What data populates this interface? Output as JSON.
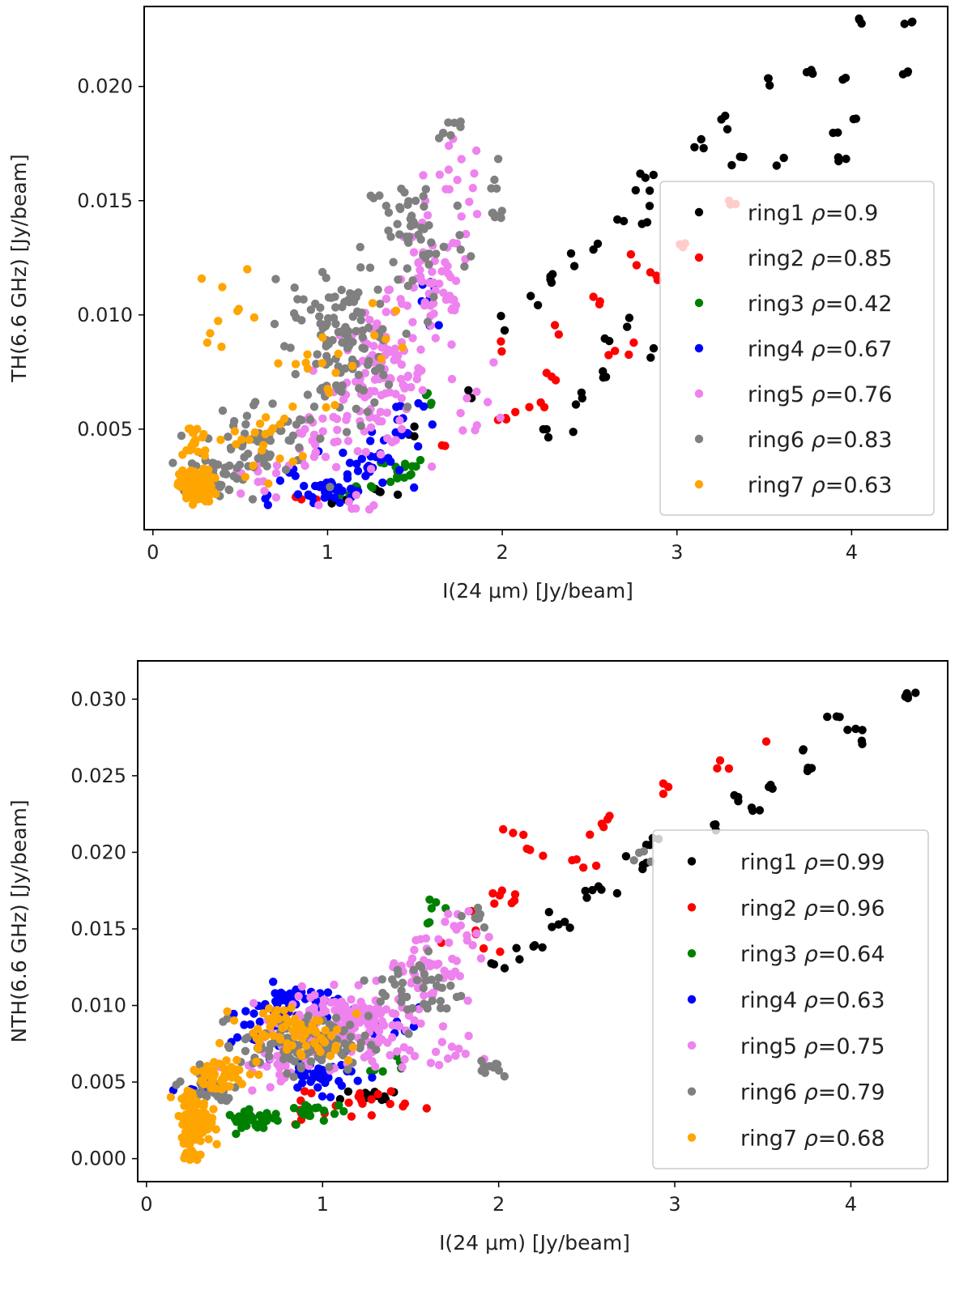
{
  "chart_data": [
    {
      "type": "scatter",
      "xlabel": "I(24 μm) [Jy/beam]",
      "ylabel": "TH(6.6 GHz) [Jy/beam]",
      "xlim": [
        -0.05,
        4.55
      ],
      "ylim": [
        0.0006,
        0.0235
      ],
      "xticks": [
        0,
        1,
        2,
        3,
        4
      ],
      "xtick_labels": [
        "0",
        "1",
        "2",
        "3",
        "4"
      ],
      "yticks": [
        0.005,
        0.01,
        0.015,
        0.02
      ],
      "ytick_labels": [
        "0.005",
        "0.010",
        "0.015",
        "0.020"
      ],
      "grid": false,
      "legend_position": "lower-right",
      "series": [
        {
          "name": "ring1",
          "rho": "0.9",
          "color": "#000000",
          "clusters": [
            [
              4.05,
              0.0228,
              0.03,
              0.0002,
              3
            ],
            [
              4.34,
              0.0228,
              0.03,
              0.0002,
              3
            ],
            [
              3.55,
              0.0203,
              0.04,
              0.0003,
              3
            ],
            [
              3.75,
              0.0206,
              0.05,
              0.0003,
              3
            ],
            [
              3.95,
              0.0205,
              0.03,
              0.0003,
              2
            ],
            [
              4.3,
              0.0205,
              0.03,
              0.0002,
              3
            ],
            [
              3.3,
              0.0186,
              0.06,
              0.0003,
              3
            ],
            [
              3.9,
              0.0183,
              0.03,
              0.0003,
              2
            ],
            [
              4.02,
              0.0186,
              0.02,
              0.0002,
              2
            ],
            [
              3.15,
              0.0172,
              0.05,
              0.0004,
              3
            ],
            [
              3.35,
              0.0168,
              0.05,
              0.0003,
              3
            ],
            [
              3.6,
              0.0166,
              0.03,
              0.0003,
              2
            ],
            [
              3.95,
              0.0168,
              0.05,
              0.0002,
              3
            ],
            [
              2.85,
              0.0162,
              0.05,
              0.0004,
              3
            ],
            [
              2.8,
              0.015,
              0.05,
              0.0005,
              3
            ],
            [
              2.7,
              0.0142,
              0.04,
              0.0003,
              2
            ],
            [
              2.8,
              0.0138,
              0.03,
              0.0003,
              2
            ],
            [
              2.55,
              0.013,
              0.03,
              0.0003,
              2
            ],
            [
              2.4,
              0.0125,
              0.03,
              0.0003,
              2
            ],
            [
              2.3,
              0.0117,
              0.05,
              0.0004,
              4
            ],
            [
              2.2,
              0.0106,
              0.03,
              0.0003,
              2
            ],
            [
              2.7,
              0.0096,
              0.03,
              0.0003,
              2
            ],
            [
              2.6,
              0.0088,
              0.03,
              0.0003,
              2
            ],
            [
              2.85,
              0.0084,
              0.04,
              0.0003,
              2
            ],
            [
              2.55,
              0.0073,
              0.05,
              0.0003,
              3
            ],
            [
              2.45,
              0.0063,
              0.05,
              0.0003,
              3
            ],
            [
              2.3,
              0.0048,
              0.1,
              0.0004,
              4
            ],
            [
              2.0,
              0.0095,
              0.02,
              0.0003,
              2
            ],
            [
              1.8,
              0.0066,
              0.05,
              0.0003,
              2
            ],
            [
              1.5,
              0.0048,
              0.05,
              0.0004,
              3
            ],
            [
              1.3,
              0.0022,
              0.08,
              0.0002,
              4
            ],
            [
              1.05,
              0.0019,
              0.1,
              0.0002,
              5
            ]
          ]
        },
        {
          "name": "ring2",
          "rho": "0.85",
          "color": "#ff0000",
          "clusters": [
            [
              3.3,
              0.0147,
              0.04,
              0.0003,
              3
            ],
            [
              3.05,
              0.0128,
              0.06,
              0.0006,
              3
            ],
            [
              2.75,
              0.0123,
              0.03,
              0.0003,
              2
            ],
            [
              2.9,
              0.0118,
              0.05,
              0.0004,
              3
            ],
            [
              2.55,
              0.0104,
              0.04,
              0.0003,
              3
            ],
            [
              2.3,
              0.0093,
              0.03,
              0.0003,
              2
            ],
            [
              2.7,
              0.0086,
              0.08,
              0.0004,
              4
            ],
            [
              2.0,
              0.0087,
              0.02,
              0.0004,
              2
            ],
            [
              2.3,
              0.0072,
              0.05,
              0.0004,
              3
            ],
            [
              2.15,
              0.006,
              0.08,
              0.0003,
              4
            ],
            [
              2.0,
              0.0055,
              0.05,
              0.0004,
              3
            ],
            [
              1.65,
              0.0043,
              0.03,
              0.0002,
              2
            ],
            [
              0.9,
              0.0019,
              0.06,
              0.0002,
              3
            ]
          ]
        },
        {
          "name": "ring3",
          "rho": "0.42",
          "color": "#008000",
          "clusters": [
            [
              1.35,
              0.0032,
              0.2,
              0.0005,
              16
            ],
            [
              1.15,
              0.0024,
              0.15,
              0.0004,
              10
            ],
            [
              1.6,
              0.0062,
              0.06,
              0.0006,
              4
            ]
          ]
        },
        {
          "name": "ring4",
          "rho": "0.67",
          "color": "#0000ff",
          "clusters": [
            [
              1.0,
              0.0024,
              0.13,
              0.0005,
              35
            ],
            [
              1.25,
              0.0034,
              0.15,
              0.0008,
              25
            ],
            [
              1.4,
              0.0054,
              0.12,
              0.0012,
              12
            ],
            [
              1.6,
              0.0105,
              0.12,
              0.0018,
              7
            ],
            [
              0.65,
              0.0018,
              0.05,
              0.0003,
              3
            ],
            [
              0.85,
              0.0034,
              0.08,
              0.0006,
              5
            ]
          ]
        },
        {
          "name": "ring5",
          "rho": "0.76",
          "color": "#ee82ee",
          "clusters": [
            [
              1.3,
              0.0072,
              0.22,
              0.0025,
              110
            ],
            [
              1.6,
              0.0112,
              0.2,
              0.0025,
              60
            ],
            [
              1.75,
              0.0158,
              0.12,
              0.0015,
              15
            ],
            [
              0.95,
              0.0043,
              0.18,
              0.0015,
              30
            ],
            [
              0.6,
              0.003,
              0.15,
              0.0008,
              12
            ],
            [
              1.85,
              0.0062,
              0.15,
              0.0015,
              10
            ],
            [
              1.15,
              0.0017,
              0.15,
              0.0002,
              6
            ]
          ]
        },
        {
          "name": "ring6",
          "rho": "0.83",
          "color": "#808080",
          "clusters": [
            [
              1.1,
              0.0085,
              0.25,
              0.0025,
              110
            ],
            [
              1.5,
              0.0135,
              0.25,
              0.0025,
              55
            ],
            [
              0.6,
              0.0045,
              0.25,
              0.0015,
              60
            ],
            [
              0.35,
              0.003,
              0.15,
              0.0008,
              30
            ],
            [
              1.7,
              0.018,
              0.1,
              0.0007,
              8
            ],
            [
              1.95,
              0.015,
              0.07,
              0.0013,
              10
            ],
            [
              0.8,
              0.01,
              0.2,
              0.0015,
              14
            ]
          ]
        },
        {
          "name": "ring7",
          "rho": "0.63",
          "color": "#ffa500",
          "clusters": [
            [
              0.25,
              0.0025,
              0.08,
              0.0006,
              130
            ],
            [
              0.25,
              0.0045,
              0.06,
              0.0008,
              20
            ],
            [
              0.6,
              0.0045,
              0.2,
              0.0012,
              22
            ],
            [
              0.45,
              0.0105,
              0.15,
              0.0015,
              10
            ],
            [
              0.95,
              0.0075,
              0.2,
              0.0015,
              14
            ],
            [
              1.3,
              0.0092,
              0.1,
              0.001,
              6
            ]
          ]
        }
      ]
    },
    {
      "type": "scatter",
      "xlabel": "I(24 μm) [Jy/beam]",
      "ylabel": "NTH(6.6 GHz) [Jy/beam]",
      "xlim": [
        -0.05,
        4.55
      ],
      "ylim": [
        -0.0015,
        0.0325
      ],
      "xticks": [
        0,
        1,
        2,
        3,
        4
      ],
      "xtick_labels": [
        "0",
        "1",
        "2",
        "3",
        "4"
      ],
      "yticks": [
        0.0,
        0.005,
        0.01,
        0.015,
        0.02,
        0.025,
        0.03
      ],
      "ytick_labels": [
        "0.000",
        "0.005",
        "0.010",
        "0.015",
        "0.020",
        "0.025",
        "0.030"
      ],
      "grid": false,
      "legend_position": "lower-right",
      "series": [
        {
          "name": "ring1",
          "rho": "0.99",
          "color": "#000000",
          "clusters": [
            [
              4.32,
              0.0302,
              0.03,
              0.0003,
              6
            ],
            [
              3.92,
              0.0288,
              0.03,
              0.0002,
              3
            ],
            [
              4.02,
              0.028,
              0.05,
              0.0003,
              3
            ],
            [
              4.06,
              0.0271,
              0.03,
              0.0002,
              2
            ],
            [
              3.72,
              0.0266,
              0.03,
              0.0002,
              2
            ],
            [
              3.75,
              0.0256,
              0.05,
              0.0002,
              3
            ],
            [
              3.55,
              0.0243,
              0.04,
              0.0003,
              3
            ],
            [
              3.35,
              0.0237,
              0.05,
              0.0003,
              3
            ],
            [
              3.45,
              0.0228,
              0.06,
              0.0003,
              3
            ],
            [
              3.25,
              0.022,
              0.06,
              0.0003,
              3
            ],
            [
              2.9,
              0.0205,
              0.06,
              0.0004,
              4
            ],
            [
              2.8,
              0.0192,
              0.08,
              0.0004,
              4
            ],
            [
              2.55,
              0.0172,
              0.12,
              0.0006,
              6
            ],
            [
              2.3,
              0.0155,
              0.1,
              0.0006,
              5
            ],
            [
              2.15,
              0.0138,
              0.1,
              0.0005,
              5
            ],
            [
              2.0,
              0.0128,
              0.05,
              0.0004,
              3
            ],
            [
              1.3,
              0.004,
              0.15,
              0.0004,
              14
            ]
          ]
        },
        {
          "name": "ring2",
          "rho": "0.96",
          "color": "#ff0000",
          "clusters": [
            [
              3.53,
              0.0274,
              0.02,
              0.0002,
              1
            ],
            [
              3.3,
              0.0255,
              0.06,
              0.0006,
              3
            ],
            [
              2.95,
              0.0242,
              0.05,
              0.0004,
              3
            ],
            [
              2.6,
              0.022,
              0.1,
              0.0005,
              5
            ],
            [
              2.15,
              0.0205,
              0.15,
              0.0008,
              6
            ],
            [
              2.5,
              0.019,
              0.1,
              0.0006,
              4
            ],
            [
              2.1,
              0.017,
              0.15,
              0.0008,
              8
            ],
            [
              1.9,
              0.014,
              0.1,
              0.001,
              5
            ],
            [
              1.2,
              0.0038,
              0.25,
              0.0008,
              20
            ],
            [
              0.9,
              0.003,
              0.1,
              0.0006,
              6
            ]
          ]
        },
        {
          "name": "ring3",
          "rho": "0.64",
          "color": "#008000",
          "clusters": [
            [
              0.6,
              0.0025,
              0.12,
              0.0005,
              35
            ],
            [
              0.95,
              0.003,
              0.15,
              0.0006,
              22
            ],
            [
              1.6,
              0.0165,
              0.06,
              0.0008,
              6
            ],
            [
              1.35,
              0.006,
              0.1,
              0.0008,
              6
            ]
          ]
        },
        {
          "name": "ring4",
          "rho": "0.63",
          "color": "#0000ff",
          "clusters": [
            [
              0.85,
              0.0102,
              0.2,
              0.001,
              45
            ],
            [
              1.0,
              0.0055,
              0.2,
              0.001,
              35
            ],
            [
              0.6,
              0.008,
              0.15,
              0.001,
              14
            ],
            [
              0.3,
              0.0045,
              0.1,
              0.0008,
              6
            ],
            [
              1.45,
              0.0085,
              0.1,
              0.001,
              8
            ]
          ]
        },
        {
          "name": "ring5",
          "rho": "0.75",
          "color": "#ee82ee",
          "clusters": [
            [
              1.15,
              0.009,
              0.3,
              0.0015,
              150
            ],
            [
              1.6,
              0.0125,
              0.2,
              0.002,
              40
            ],
            [
              1.75,
              0.015,
              0.15,
              0.0015,
              15
            ],
            [
              0.7,
              0.006,
              0.2,
              0.0015,
              30
            ],
            [
              1.75,
              0.007,
              0.1,
              0.0008,
              10
            ],
            [
              1.3,
              0.0065,
              0.2,
              0.001,
              20
            ]
          ]
        },
        {
          "name": "ring6",
          "rho": "0.79",
          "color": "#808080",
          "clusters": [
            [
              0.9,
              0.0075,
              0.3,
              0.0015,
              120
            ],
            [
              1.55,
              0.011,
              0.2,
              0.002,
              40
            ],
            [
              1.85,
              0.016,
              0.1,
              0.0008,
              8
            ],
            [
              1.95,
              0.006,
              0.1,
              0.0006,
              10
            ],
            [
              0.35,
              0.0045,
              0.15,
              0.001,
              30
            ],
            [
              2.85,
              0.02,
              0.08,
              0.0004,
              4
            ]
          ]
        },
        {
          "name": "ring7",
          "rho": "0.68",
          "color": "#ffa500",
          "clusters": [
            [
              0.28,
              0.0025,
              0.07,
              0.0012,
              150
            ],
            [
              0.4,
              0.0055,
              0.15,
              0.001,
              50
            ],
            [
              0.75,
              0.0085,
              0.2,
              0.0012,
              45
            ],
            [
              1.05,
              0.0075,
              0.15,
              0.0012,
              20
            ],
            [
              0.25,
              0.0002,
              0.05,
              0.0003,
              15
            ]
          ]
        }
      ]
    }
  ]
}
